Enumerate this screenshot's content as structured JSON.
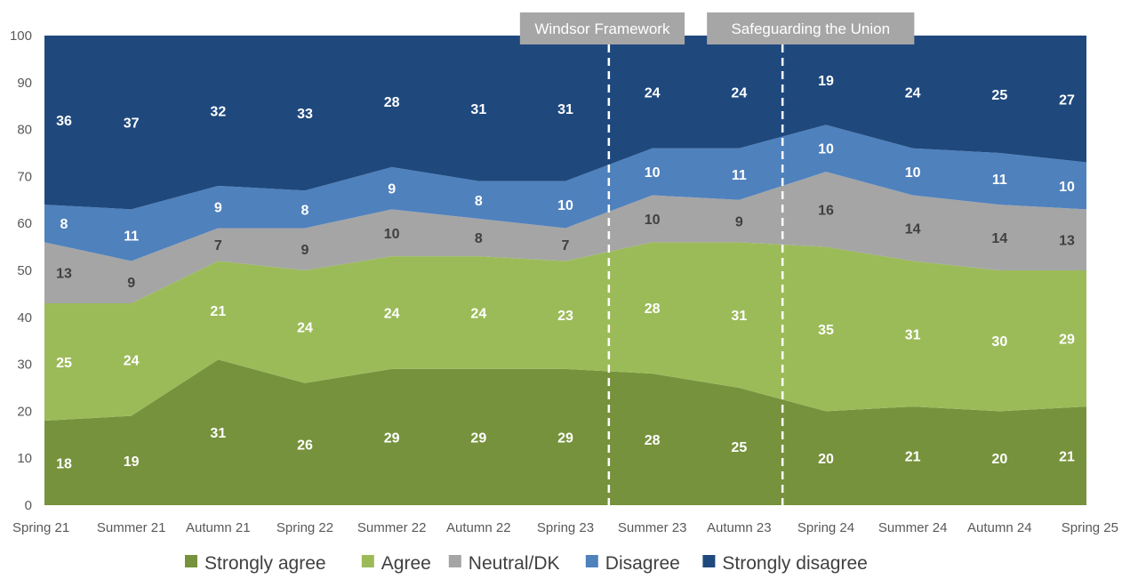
{
  "chart_data": {
    "type": "area",
    "stacked": true,
    "categories": [
      "Spring 21",
      "Summer 21",
      "Autumn 21",
      "Spring 22",
      "Summer 22",
      "Autumn 22",
      "Spring 23",
      "Summer 23",
      "Autumn 23",
      "Spring 24",
      "Summer 24",
      "Autumn 24",
      "Spring 25"
    ],
    "ylim": [
      0,
      100
    ],
    "yticks": [
      "0",
      "10",
      "20",
      "30",
      "40",
      "50",
      "60",
      "70",
      "80",
      "90",
      "100"
    ],
    "grid": false,
    "legend_position": "bottom",
    "series": [
      {
        "name": "Strongly agree",
        "color": "#76923c",
        "label_color": "#ffffff",
        "values": [
          18,
          19,
          31,
          26,
          29,
          29,
          29,
          28,
          25,
          20,
          21,
          20,
          21
        ]
      },
      {
        "name": "Agree",
        "color": "#9bbb59",
        "label_color": "#ffffff",
        "values": [
          25,
          24,
          21,
          24,
          24,
          24,
          23,
          28,
          31,
          35,
          31,
          30,
          29
        ]
      },
      {
        "name": "Neutral/DK",
        "color": "#a5a5a5",
        "label_color": "#404040",
        "values": [
          13,
          9,
          7,
          9,
          10,
          8,
          7,
          10,
          9,
          16,
          14,
          14,
          13
        ]
      },
      {
        "name": "Disagree",
        "color": "#4f81bd",
        "label_color": "#ffffff",
        "values": [
          8,
          11,
          9,
          8,
          9,
          8,
          10,
          10,
          11,
          10,
          10,
          11,
          10
        ]
      },
      {
        "name": "Strongly disagree",
        "color": "#1f497d",
        "label_color": "#ffffff",
        "values": [
          36,
          37,
          32,
          33,
          28,
          31,
          31,
          24,
          24,
          19,
          24,
          25,
          27
        ]
      }
    ],
    "annotations": [
      {
        "text": "Windsor Framework",
        "between": [
          "Spring 23",
          "Summer 23"
        ]
      },
      {
        "text": "Safeguarding the Union",
        "between": [
          "Autumn 23",
          "Spring 24"
        ]
      }
    ]
  }
}
